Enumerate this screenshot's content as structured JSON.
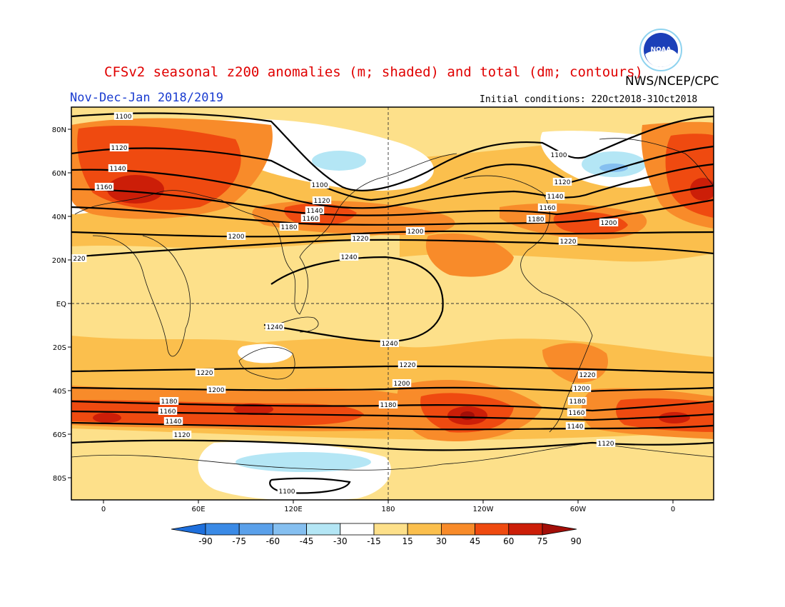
{
  "header": {
    "title": "CFSv2 seasonal z200 anomalies (m; shaded) and total (dm; contours)",
    "period": "Nov-Dec-Jan 2018/2019",
    "agency": "NWS/NCEP/CPC",
    "initial_conditions": "Initial conditions: 22Oct2018-31Oct2018",
    "logo_text": "NOAA"
  },
  "map": {
    "lat_ticks": [
      "80N",
      "60N",
      "40N",
      "20N",
      "EQ",
      "20S",
      "40S",
      "60S",
      "80S"
    ],
    "lon_ticks": [
      "0",
      "60E",
      "120E",
      "180",
      "120W",
      "60W",
      "0"
    ],
    "contour_labels": [
      {
        "text": "1100"
      },
      {
        "text": "1120"
      },
      {
        "text": "1140"
      },
      {
        "text": "1160"
      },
      {
        "text": "1100"
      },
      {
        "text": "1120"
      },
      {
        "text": "1140"
      },
      {
        "text": "1160"
      },
      {
        "text": "1180"
      },
      {
        "text": "1200"
      },
      {
        "text": "1220"
      },
      {
        "text": "1240"
      },
      {
        "text": "1200"
      },
      {
        "text": "1100"
      },
      {
        "text": "1120"
      },
      {
        "text": "1140"
      },
      {
        "text": "1160"
      },
      {
        "text": "1180"
      },
      {
        "text": "1200"
      },
      {
        "text": "1220"
      },
      {
        "text": "220"
      },
      {
        "text": "1240"
      },
      {
        "text": "1240"
      },
      {
        "text": "1220"
      },
      {
        "text": "1220"
      },
      {
        "text": "1220"
      },
      {
        "text": "1200"
      },
      {
        "text": "1200"
      },
      {
        "text": "1200"
      },
      {
        "text": "1180"
      },
      {
        "text": "1180"
      },
      {
        "text": "1180"
      },
      {
        "text": "1160"
      },
      {
        "text": "1160"
      },
      {
        "text": "1140"
      },
      {
        "text": "1140"
      },
      {
        "text": "1120"
      },
      {
        "text": "1120"
      },
      {
        "text": "1100"
      }
    ]
  },
  "legend": {
    "levels": [
      "-90",
      "-75",
      "-60",
      "-45",
      "-30",
      "-15",
      "15",
      "30",
      "45",
      "60",
      "75",
      "90"
    ],
    "colors": [
      "#1e6fdc",
      "#3a8ae6",
      "#5aa0ea",
      "#85bff0",
      "#b4e6f5",
      "#ffffff",
      "#fde08a",
      "#fbbf4d",
      "#f88b2a",
      "#ef4a10",
      "#cc1e08",
      "#a30e08"
    ]
  }
}
